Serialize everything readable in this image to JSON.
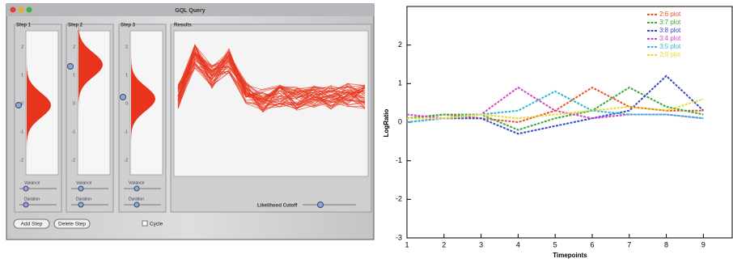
{
  "window": {
    "title": "GQL Query",
    "steps": [
      {
        "title": "Step 1",
        "ticks": [
          "2",
          "1",
          "0",
          "-1",
          "-2"
        ],
        "sliders": [
          "Variance",
          "Duration"
        ]
      },
      {
        "title": "Step 2",
        "ticks": [
          "2",
          "1",
          "0",
          "-1",
          "-2"
        ],
        "sliders": [
          "Variance",
          "Duration"
        ]
      },
      {
        "title": "Step 3",
        "ticks": [
          "2",
          "1",
          "0",
          "-1",
          "-2"
        ],
        "sliders": [
          "Variance",
          "Duration"
        ]
      }
    ],
    "results": {
      "title": "Results",
      "cutoff_label": "Likelihood Cutoff"
    },
    "buttons": [
      "Add Step",
      "Delete Step"
    ],
    "checkbox": "Cycle"
  },
  "chart_data": {
    "type": "line",
    "xlabel": "Timepoints",
    "ylabel": "LogRatio",
    "x": [
      1,
      2,
      3,
      4,
      5,
      6,
      7,
      8,
      9
    ],
    "xlim": [
      1,
      9.8
    ],
    "xticks": [
      1,
      2,
      3,
      4,
      5,
      6,
      7,
      8,
      9
    ],
    "ylim": [
      -3,
      3
    ],
    "yticks": [
      -3,
      -2,
      -1,
      0,
      1,
      2
    ],
    "legend": "upper right",
    "series": [
      {
        "name": "2:6 plot",
        "color": "#f0502a",
        "values": [
          0.1,
          0.2,
          0.1,
          0.0,
          0.3,
          0.9,
          0.4,
          0.3,
          0.3
        ]
      },
      {
        "name": "3:7 plot",
        "color": "#3aa83a",
        "values": [
          0.1,
          0.2,
          0.2,
          -0.2,
          0.1,
          0.3,
          0.9,
          0.4,
          0.2
        ]
      },
      {
        "name": "3:8 plot",
        "color": "#3a48c8",
        "values": [
          0.0,
          0.1,
          0.1,
          -0.3,
          -0.1,
          0.1,
          0.3,
          1.2,
          0.3
        ]
      },
      {
        "name": "3:4 plot",
        "color": "#d048c8",
        "values": [
          0.2,
          0.1,
          0.2,
          0.9,
          0.3,
          0.1,
          0.2,
          0.2,
          0.1
        ]
      },
      {
        "name": "3:5 plot",
        "color": "#30b8d8",
        "values": [
          0.0,
          0.1,
          0.2,
          0.3,
          0.8,
          0.3,
          0.2,
          0.2,
          0.1
        ]
      },
      {
        "name": "2:9 plot",
        "color": "#e8d838",
        "values": [
          0.1,
          0.1,
          0.2,
          0.1,
          0.2,
          0.3,
          0.4,
          0.3,
          0.6
        ]
      }
    ]
  }
}
